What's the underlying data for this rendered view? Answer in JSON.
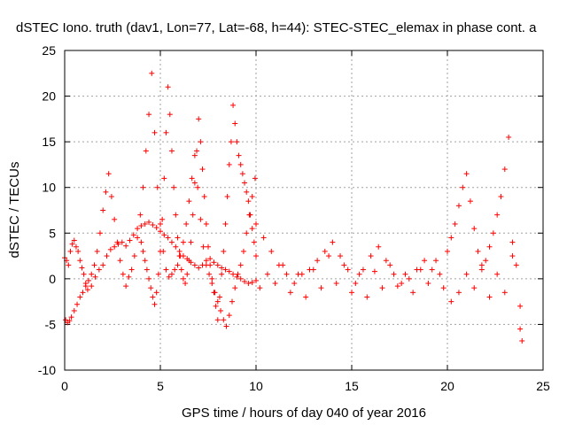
{
  "chart_data": {
    "type": "scatter",
    "title": "dSTEC Iono. truth (dav1, Lon=77, Lat=-68, h=44): STEC-STEC_elemax in phase cont. a",
    "xlabel": "GPS time / hours of day 040 of year 2016",
    "ylabel": "dSTEC  / TECUs",
    "xlim": [
      0,
      25
    ],
    "ylim": [
      -10,
      25
    ],
    "xticks": [
      0,
      5,
      10,
      15,
      20,
      25
    ],
    "yticks": [
      -10,
      -5,
      0,
      5,
      10,
      15,
      20,
      25
    ],
    "xtick_labels": [
      "0",
      "5",
      "10",
      "15",
      "20",
      "25"
    ],
    "ytick_labels": [
      "-10",
      "-5",
      "0",
      "5",
      "10",
      "15",
      "20",
      "25"
    ],
    "grid": true,
    "marker": "+",
    "color": "#ff0000",
    "series": [
      {
        "x": [
          0.0,
          0.1,
          0.2,
          0.3,
          0.4,
          0.5,
          0.6,
          0.7,
          0.8,
          0.9,
          1.0,
          1.1,
          1.2,
          1.4,
          1.6,
          1.8,
          2.0,
          2.2,
          2.4,
          2.6,
          2.8,
          3.0,
          3.2,
          3.4,
          3.6,
          3.8,
          4.0,
          4.2,
          4.4,
          4.6,
          4.8,
          5.0,
          5.2,
          5.4,
          5.6,
          5.8,
          6.0,
          6.2,
          6.4,
          6.6,
          6.8,
          7.0,
          7.2,
          7.4,
          7.6,
          7.8,
          8.0,
          8.2,
          8.4,
          8.6,
          8.8,
          9.0,
          9.2,
          9.4,
          9.6,
          9.8,
          10.0
        ],
        "y": [
          2.3,
          2.0,
          1.5,
          3.0,
          3.8,
          4.2,
          3.5,
          3.0,
          2.0,
          1.2,
          0.5,
          -0.5,
          -1.2,
          -0.8,
          0.2,
          1.0,
          1.5,
          2.5,
          3.2,
          3.5,
          3.8,
          4.0,
          3.6,
          4.2,
          4.8,
          5.5,
          5.8,
          6.0,
          6.2,
          5.9,
          5.6,
          5.2,
          4.8,
          4.5,
          4.0,
          3.5,
          3.0,
          2.5,
          2.2,
          1.8,
          1.5,
          1.2,
          1.5,
          2.0,
          2.2,
          1.8,
          1.5,
          1.2,
          1.0,
          0.8,
          0.5,
          0.2,
          0.0,
          -0.3,
          -0.5,
          -0.4,
          -0.2
        ]
      },
      {
        "x": [
          0.05,
          0.15,
          0.25,
          0.35,
          0.5,
          0.65,
          0.8,
          0.95,
          1.1,
          1.25,
          1.4,
          1.55,
          1.7,
          1.85,
          2.0,
          2.15,
          2.3,
          2.45,
          2.6,
          2.75,
          2.9,
          3.05,
          3.2,
          3.35,
          3.5,
          3.65,
          3.8,
          3.95,
          4.1,
          4.25,
          4.4,
          4.55,
          4.7,
          4.85,
          5.0,
          5.15,
          5.3,
          5.45,
          5.6,
          5.75,
          5.9,
          6.05,
          6.2,
          6.35,
          6.5,
          6.65,
          6.8,
          6.95,
          7.1,
          7.25,
          7.4,
          7.55,
          7.7,
          7.85,
          8.0,
          8.15,
          8.3,
          8.45,
          8.6,
          8.75,
          8.9,
          9.05,
          9.2,
          9.35,
          9.5,
          9.65,
          9.8,
          9.95
        ],
        "y": [
          -4.5,
          -4.8,
          -4.6,
          -4.2,
          -3.5,
          -2.8,
          -2.0,
          -1.5,
          -0.8,
          -0.2,
          0.5,
          1.5,
          3.0,
          5.0,
          7.5,
          9.5,
          11.5,
          9.0,
          6.5,
          4.0,
          2.0,
          0.5,
          -0.8,
          0.2,
          1.0,
          2.5,
          4.5,
          7.0,
          10.0,
          14.0,
          18.0,
          22.5,
          16.0,
          10.0,
          6.0,
          3.0,
          1.0,
          0.2,
          0.5,
          1.0,
          1.5,
          2.5,
          4.0,
          6.0,
          8.5,
          11.0,
          13.5,
          10.0,
          6.5,
          3.5,
          1.5,
          0.5,
          -0.5,
          -1.5,
          -2.5,
          -3.5,
          -4.5,
          -5.2,
          -4.0,
          -2.5,
          -1.0,
          0.5,
          1.5,
          3.0,
          5.0,
          7.0,
          9.0,
          11.0
        ]
      },
      {
        "x": [
          4.0,
          4.1,
          4.2,
          4.3,
          4.4,
          4.5,
          4.6,
          4.7,
          4.8,
          4.9,
          5.0,
          5.1,
          5.2,
          5.3,
          5.4,
          5.5,
          5.6,
          5.7,
          5.8,
          5.9,
          6.0,
          6.1,
          6.2,
          6.3,
          6.4,
          6.5,
          6.6,
          6.7,
          6.8,
          6.9,
          7.0,
          7.1,
          7.2,
          7.3,
          7.4,
          7.5,
          7.6,
          7.7,
          7.8,
          7.9,
          8.0,
          8.1,
          8.2,
          8.3,
          8.4,
          8.5,
          8.6,
          8.7,
          8.8,
          8.9,
          9.0,
          9.1,
          9.2,
          9.3,
          9.4,
          9.5,
          9.6,
          9.7,
          9.8,
          9.9,
          10.0
        ],
        "y": [
          4.0,
          3.0,
          2.0,
          1.0,
          0.0,
          -1.0,
          -2.0,
          -2.8,
          -1.5,
          0.5,
          3.0,
          6.5,
          11.0,
          16.0,
          21.0,
          18.0,
          14.0,
          10.0,
          7.0,
          4.5,
          2.5,
          1.0,
          0.0,
          -0.5,
          0.5,
          2.0,
          4.0,
          7.0,
          10.5,
          14.0,
          17.5,
          15.0,
          12.0,
          9.0,
          6.0,
          3.5,
          1.5,
          0.0,
          -1.5,
          -3.0,
          -4.5,
          -2.0,
          0.5,
          3.0,
          6.0,
          9.0,
          12.5,
          15.0,
          19.0,
          17.0,
          15.0,
          13.5,
          12.5,
          11.5,
          10.5,
          9.5,
          8.5,
          7.0,
          5.5,
          4.0,
          2.5
        ]
      },
      {
        "x": [
          10.0,
          10.4,
          10.8,
          11.2,
          11.6,
          12.0,
          12.4,
          12.8,
          13.2,
          13.6,
          14.0,
          14.4,
          14.8,
          15.2,
          15.6,
          16.0,
          16.4,
          16.8,
          17.2,
          17.6,
          18.0,
          18.4,
          18.8,
          19.2,
          19.6,
          20.0,
          20.2,
          20.4,
          20.6,
          20.8,
          21.0,
          21.2,
          21.4,
          21.6,
          21.8,
          22.0,
          22.2,
          22.4,
          22.6,
          22.8,
          23.0,
          23.2,
          23.4,
          23.6,
          23.8,
          23.9
        ],
        "y": [
          6.0,
          4.5,
          3.0,
          1.5,
          0.5,
          -0.5,
          0.5,
          1.0,
          2.0,
          3.0,
          4.0,
          2.5,
          1.0,
          -0.5,
          1.0,
          2.5,
          3.5,
          2.0,
          0.5,
          -0.5,
          0.0,
          1.0,
          2.0,
          1.0,
          0.5,
          3.0,
          4.5,
          6.0,
          8.0,
          10.0,
          11.5,
          8.5,
          5.5,
          3.0,
          1.0,
          2.0,
          3.5,
          5.0,
          7.0,
          9.0,
          12.0,
          15.5,
          4.0,
          1.5,
          -3.0,
          -6.8
        ]
      },
      {
        "x": [
          10.2,
          10.6,
          11.0,
          11.4,
          11.8,
          12.2,
          12.6,
          13.0,
          13.4,
          13.8,
          14.2,
          14.6,
          15.0,
          15.4,
          15.8,
          16.2,
          16.6,
          17.0,
          17.4,
          17.8,
          18.2,
          18.6,
          19.0,
          19.4,
          19.8,
          20.2,
          20.6,
          21.0,
          21.4,
          21.8,
          22.2,
          22.6,
          23.0,
          23.4,
          23.8
        ],
        "y": [
          -1.0,
          0.5,
          -0.5,
          1.5,
          -1.5,
          0.5,
          -2.0,
          1.0,
          -1.0,
          2.5,
          -0.5,
          1.5,
          -1.5,
          0.5,
          -2.0,
          0.8,
          -1.0,
          1.5,
          -0.8,
          0.5,
          -1.5,
          1.0,
          -0.5,
          2.0,
          -1.0,
          -2.5,
          -1.5,
          0.5,
          -1.0,
          1.5,
          -2.0,
          0.5,
          -1.5,
          2.5,
          -5.5
        ]
      }
    ]
  }
}
